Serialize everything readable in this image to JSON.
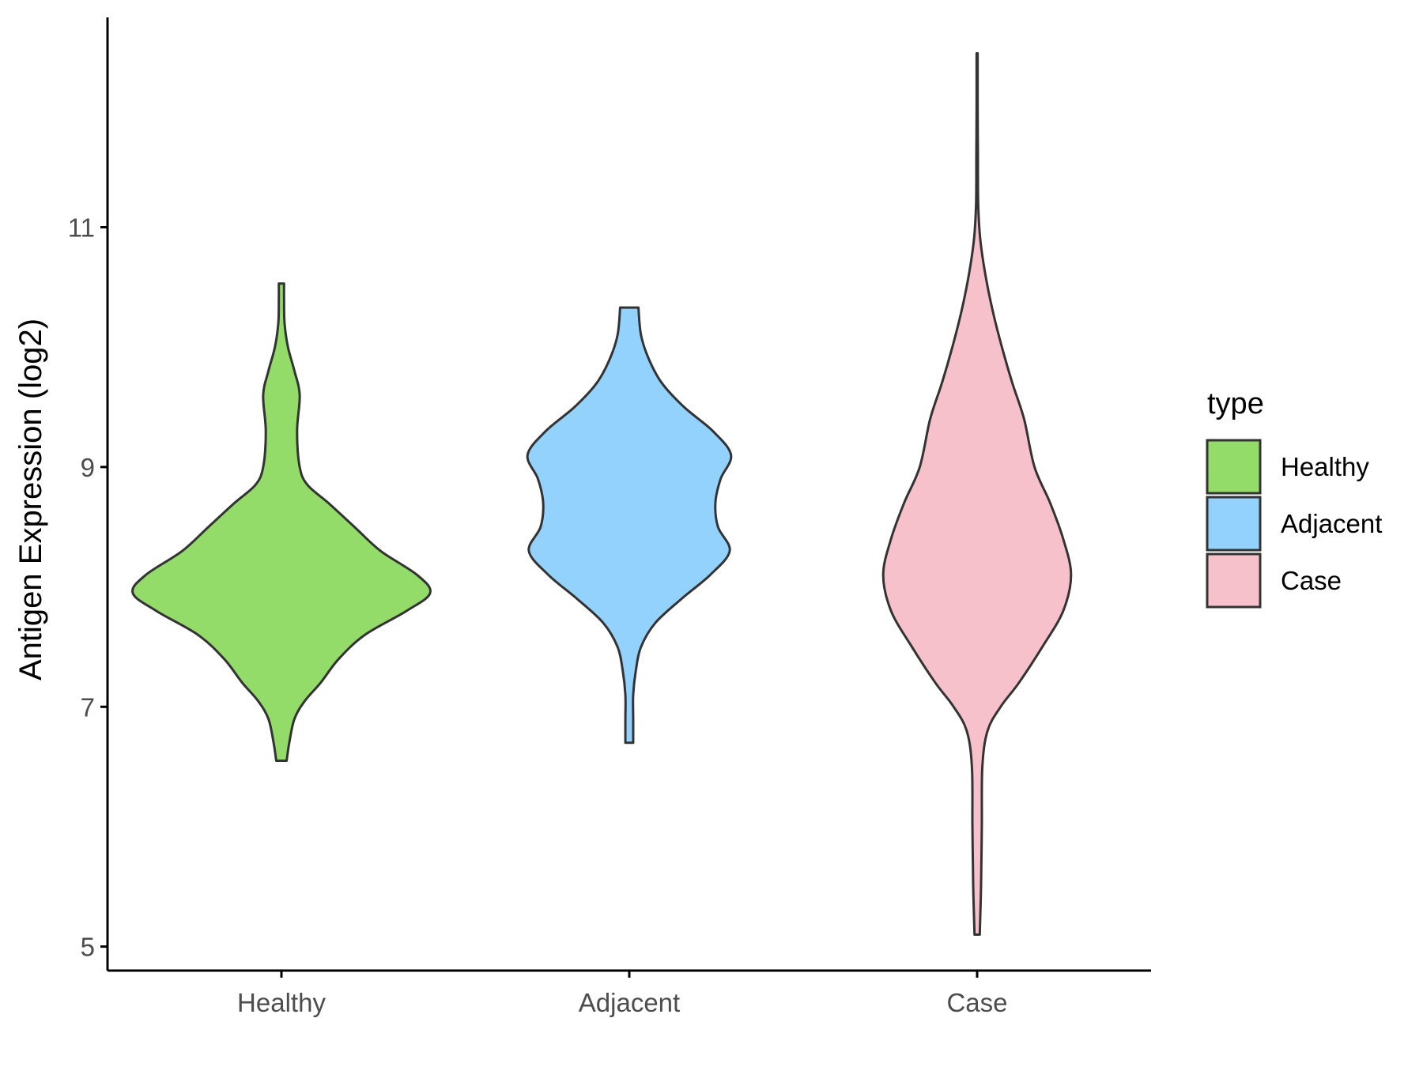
{
  "chart_data": {
    "type": "violin",
    "title": "",
    "xlabel": "",
    "ylabel": "Antigen Expression (log2)",
    "ylim": [
      4.8,
      12.75
    ],
    "yticks": [
      5,
      7,
      9,
      11
    ],
    "categories": [
      "Healthy",
      "Adjacent",
      "Case"
    ],
    "colors": {
      "Healthy": "#93dc69",
      "Adjacent": "#94d2fe",
      "Case": "#f7c1cc"
    },
    "outline_color": "#333333",
    "grid": false,
    "legend": {
      "title": "type",
      "position": "right",
      "entries": [
        "Healthy",
        "Adjacent",
        "Case"
      ]
    },
    "series": [
      {
        "name": "Healthy",
        "min": 6.55,
        "max": 10.53,
        "density_profile": [
          [
            6.55,
            0.02
          ],
          [
            6.7,
            0.03
          ],
          [
            6.9,
            0.05
          ],
          [
            7.05,
            0.09
          ],
          [
            7.2,
            0.15
          ],
          [
            7.4,
            0.22
          ],
          [
            7.6,
            0.32
          ],
          [
            7.8,
            0.48
          ],
          [
            7.95,
            0.57
          ],
          [
            8.1,
            0.52
          ],
          [
            8.3,
            0.38
          ],
          [
            8.5,
            0.28
          ],
          [
            8.7,
            0.18
          ],
          [
            8.85,
            0.1
          ],
          [
            9.0,
            0.07
          ],
          [
            9.3,
            0.06
          ],
          [
            9.6,
            0.07
          ],
          [
            9.8,
            0.05
          ],
          [
            10.0,
            0.025
          ],
          [
            10.2,
            0.012
          ],
          [
            10.4,
            0.01
          ],
          [
            10.53,
            0.01
          ]
        ]
      },
      {
        "name": "Adjacent",
        "min": 6.7,
        "max": 10.33,
        "density_profile": [
          [
            6.7,
            0.015
          ],
          [
            6.9,
            0.015
          ],
          [
            7.1,
            0.015
          ],
          [
            7.3,
            0.025
          ],
          [
            7.5,
            0.045
          ],
          [
            7.7,
            0.1
          ],
          [
            7.9,
            0.2
          ],
          [
            8.1,
            0.31
          ],
          [
            8.3,
            0.385
          ],
          [
            8.5,
            0.34
          ],
          [
            8.7,
            0.33
          ],
          [
            8.9,
            0.35
          ],
          [
            9.1,
            0.39
          ],
          [
            9.3,
            0.32
          ],
          [
            9.5,
            0.21
          ],
          [
            9.7,
            0.125
          ],
          [
            9.9,
            0.075
          ],
          [
            10.1,
            0.045
          ],
          [
            10.33,
            0.035
          ]
        ]
      },
      {
        "name": "Case",
        "min": 5.1,
        "max": 12.45,
        "density_profile": [
          [
            5.1,
            0.01
          ],
          [
            5.5,
            0.015
          ],
          [
            6.0,
            0.018
          ],
          [
            6.5,
            0.02
          ],
          [
            6.8,
            0.04
          ],
          [
            7.0,
            0.09
          ],
          [
            7.2,
            0.16
          ],
          [
            7.5,
            0.25
          ],
          [
            7.8,
            0.33
          ],
          [
            8.1,
            0.36
          ],
          [
            8.4,
            0.33
          ],
          [
            8.7,
            0.28
          ],
          [
            9.0,
            0.22
          ],
          [
            9.4,
            0.18
          ],
          [
            9.7,
            0.135
          ],
          [
            10.0,
            0.095
          ],
          [
            10.3,
            0.06
          ],
          [
            10.6,
            0.032
          ],
          [
            10.9,
            0.012
          ],
          [
            11.2,
            0.004
          ],
          [
            11.6,
            0.003
          ],
          [
            12.0,
            0.002
          ],
          [
            12.45,
            0.002
          ]
        ]
      }
    ]
  }
}
